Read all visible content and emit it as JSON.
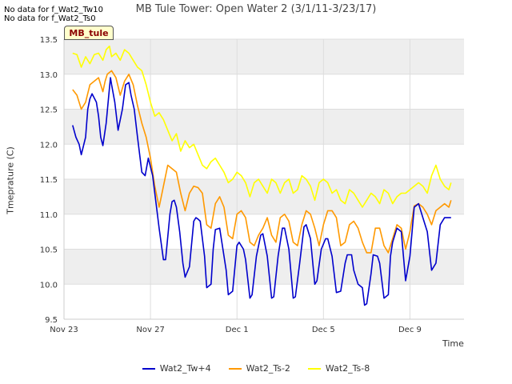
{
  "nodata_lines": [
    "No data for f_Wat2_Tw10",
    "No data for f_Wat2_Ts0"
  ],
  "badge_label": "MB_tule",
  "chart_data": {
    "type": "line",
    "title": "MB Tule Tower: Open Water 2 (3/1/11-3/23/17)",
    "xlabel": "Time",
    "ylabel": "Tmeprature (C)",
    "xlim": [
      0,
      18.5
    ],
    "ylim": [
      9.5,
      13.5
    ],
    "x_ticks": [
      {
        "label": "Nov 23",
        "value": 0
      },
      {
        "label": "Nov 27",
        "value": 4
      },
      {
        "label": "Dec 1",
        "value": 8
      },
      {
        "label": "Dec 5",
        "value": 12
      },
      {
        "label": "Dec 9",
        "value": 16
      }
    ],
    "y_ticks": [
      9.5,
      10.0,
      10.5,
      11.0,
      11.5,
      12.0,
      12.5,
      13.0,
      13.5
    ],
    "grid": true,
    "legend_position": "bottom",
    "series": [
      {
        "name": "Wat2_Tw+4",
        "color": "#0000cc",
        "x": [
          0.4,
          0.55,
          0.7,
          0.8,
          1.0,
          1.1,
          1.2,
          1.3,
          1.5,
          1.6,
          1.7,
          1.8,
          1.95,
          2.1,
          2.15,
          2.2,
          2.35,
          2.5,
          2.7,
          2.85,
          3.0,
          3.1,
          3.25,
          3.4,
          3.6,
          3.75,
          3.9,
          4.1,
          4.2,
          4.4,
          4.6,
          4.7,
          4.9,
          5.0,
          5.1,
          5.2,
          5.35,
          5.5,
          5.6,
          5.8,
          6.0,
          6.1,
          6.2,
          6.3,
          6.5,
          6.6,
          6.8,
          6.9,
          7.0,
          7.2,
          7.3,
          7.5,
          7.6,
          7.8,
          8.0,
          8.1,
          8.3,
          8.4,
          8.6,
          8.7,
          8.9,
          9.1,
          9.2,
          9.4,
          9.6,
          9.7,
          9.9,
          10.1,
          10.2,
          10.4,
          10.6,
          10.7,
          10.9,
          11.1,
          11.2,
          11.4,
          11.6,
          11.7,
          11.9,
          12.1,
          12.2,
          12.4,
          12.6,
          12.8,
          13.0,
          13.1,
          13.3,
          13.4,
          13.6,
          13.8,
          13.9,
          14.0,
          14.2,
          14.3,
          14.5,
          14.6,
          14.8,
          15.0,
          15.1,
          15.2,
          15.4,
          15.6,
          15.8,
          16.0,
          16.2,
          16.4,
          16.6,
          16.8,
          17.0,
          17.2,
          17.4,
          17.6,
          17.8,
          17.9
        ],
        "values": [
          12.27,
          12.1,
          12.0,
          11.85,
          12.1,
          12.5,
          12.65,
          12.72,
          12.6,
          12.4,
          12.1,
          11.98,
          12.3,
          12.8,
          12.95,
          12.85,
          12.6,
          12.2,
          12.5,
          12.85,
          12.88,
          12.7,
          12.5,
          12.1,
          11.6,
          11.55,
          11.8,
          11.55,
          11.3,
          10.8,
          10.35,
          10.35,
          11.0,
          11.18,
          11.2,
          11.1,
          10.75,
          10.3,
          10.1,
          10.25,
          10.9,
          10.95,
          10.93,
          10.9,
          10.4,
          9.95,
          10.0,
          10.5,
          10.78,
          10.8,
          10.6,
          10.2,
          9.85,
          9.9,
          10.55,
          10.6,
          10.5,
          10.35,
          9.8,
          9.85,
          10.4,
          10.7,
          10.72,
          10.4,
          9.8,
          9.82,
          10.4,
          10.8,
          10.8,
          10.5,
          9.8,
          9.82,
          10.3,
          10.82,
          10.85,
          10.65,
          10.0,
          10.05,
          10.5,
          10.65,
          10.65,
          10.4,
          9.88,
          9.9,
          10.3,
          10.42,
          10.42,
          10.2,
          10.0,
          9.95,
          9.7,
          9.72,
          10.15,
          10.42,
          10.4,
          10.3,
          9.8,
          9.85,
          10.4,
          10.6,
          10.8,
          10.75,
          10.05,
          10.4,
          11.1,
          11.15,
          10.95,
          10.75,
          10.2,
          10.3,
          10.85,
          10.95,
          10.95,
          10.95
        ]
      },
      {
        "name": "Wat2_Ts-2",
        "color": "#ff9900",
        "x": [
          0.4,
          0.6,
          0.8,
          1.0,
          1.2,
          1.4,
          1.6,
          1.8,
          1.9,
          2.0,
          2.2,
          2.4,
          2.6,
          2.8,
          3.0,
          3.2,
          3.4,
          3.6,
          3.8,
          4.0,
          4.2,
          4.4,
          4.6,
          4.8,
          5.0,
          5.2,
          5.4,
          5.6,
          5.8,
          6.0,
          6.2,
          6.4,
          6.6,
          6.8,
          7.0,
          7.2,
          7.4,
          7.6,
          7.8,
          8.0,
          8.2,
          8.4,
          8.6,
          8.8,
          9.0,
          9.2,
          9.4,
          9.6,
          9.8,
          10.0,
          10.2,
          10.4,
          10.6,
          10.8,
          11.0,
          11.2,
          11.4,
          11.6,
          11.8,
          12.0,
          12.2,
          12.4,
          12.6,
          12.8,
          13.0,
          13.2,
          13.4,
          13.6,
          13.8,
          14.0,
          14.2,
          14.4,
          14.6,
          14.8,
          15.0,
          15.2,
          15.4,
          15.6,
          15.8,
          16.0,
          16.2,
          16.4,
          16.6,
          16.8,
          17.0,
          17.2,
          17.4,
          17.6,
          17.8,
          17.9
        ],
        "values": [
          12.78,
          12.7,
          12.5,
          12.6,
          12.85,
          12.9,
          12.95,
          12.75,
          12.9,
          13.0,
          13.05,
          12.95,
          12.7,
          12.9,
          13.0,
          12.85,
          12.55,
          12.3,
          12.1,
          11.8,
          11.4,
          11.1,
          11.4,
          11.7,
          11.65,
          11.6,
          11.3,
          11.05,
          11.3,
          11.4,
          11.38,
          11.3,
          10.85,
          10.8,
          11.15,
          11.25,
          11.1,
          10.7,
          10.65,
          11.0,
          11.05,
          10.95,
          10.6,
          10.55,
          10.7,
          10.8,
          10.95,
          10.7,
          10.6,
          10.95,
          11.0,
          10.9,
          10.6,
          10.55,
          10.85,
          11.05,
          11.0,
          10.8,
          10.55,
          10.85,
          11.05,
          11.05,
          10.95,
          10.55,
          10.6,
          10.85,
          10.9,
          10.8,
          10.6,
          10.45,
          10.45,
          10.8,
          10.8,
          10.55,
          10.45,
          10.65,
          10.85,
          10.8,
          10.5,
          10.75,
          11.12,
          11.15,
          11.1,
          11.0,
          10.85,
          11.05,
          11.1,
          11.15,
          11.1,
          11.2
        ]
      },
      {
        "name": "Wat2_Ts-8",
        "color": "#ffff00",
        "x": [
          0.4,
          0.6,
          0.8,
          1.0,
          1.2,
          1.4,
          1.6,
          1.8,
          1.95,
          2.1,
          2.2,
          2.4,
          2.6,
          2.8,
          3.0,
          3.2,
          3.4,
          3.6,
          3.8,
          4.0,
          4.2,
          4.4,
          4.6,
          4.8,
          5.0,
          5.2,
          5.4,
          5.6,
          5.8,
          6.0,
          6.2,
          6.4,
          6.6,
          6.8,
          7.0,
          7.2,
          7.4,
          7.6,
          7.8,
          8.0,
          8.2,
          8.4,
          8.6,
          8.8,
          9.0,
          9.2,
          9.4,
          9.6,
          9.8,
          10.0,
          10.2,
          10.4,
          10.6,
          10.8,
          11.0,
          11.2,
          11.4,
          11.6,
          11.8,
          12.0,
          12.2,
          12.4,
          12.6,
          12.8,
          13.0,
          13.2,
          13.4,
          13.6,
          13.8,
          14.0,
          14.2,
          14.4,
          14.6,
          14.8,
          15.0,
          15.2,
          15.4,
          15.6,
          15.8,
          16.0,
          16.2,
          16.4,
          16.6,
          16.8,
          17.0,
          17.2,
          17.4,
          17.6,
          17.8,
          17.9
        ],
        "values": [
          13.3,
          13.28,
          13.1,
          13.25,
          13.15,
          13.28,
          13.3,
          13.2,
          13.35,
          13.4,
          13.25,
          13.3,
          13.2,
          13.35,
          13.3,
          13.2,
          13.1,
          13.05,
          12.85,
          12.6,
          12.4,
          12.45,
          12.35,
          12.2,
          12.05,
          12.15,
          11.9,
          12.05,
          11.95,
          12.0,
          11.85,
          11.7,
          11.65,
          11.75,
          11.8,
          11.7,
          11.6,
          11.45,
          11.5,
          11.6,
          11.55,
          11.45,
          11.25,
          11.45,
          11.5,
          11.4,
          11.3,
          11.5,
          11.45,
          11.3,
          11.45,
          11.5,
          11.3,
          11.35,
          11.55,
          11.5,
          11.4,
          11.2,
          11.45,
          11.5,
          11.45,
          11.3,
          11.35,
          11.2,
          11.15,
          11.35,
          11.3,
          11.2,
          11.1,
          11.2,
          11.3,
          11.25,
          11.15,
          11.35,
          11.3,
          11.15,
          11.25,
          11.3,
          11.3,
          11.35,
          11.4,
          11.45,
          11.4,
          11.3,
          11.55,
          11.7,
          11.5,
          11.4,
          11.35,
          11.45
        ]
      }
    ]
  }
}
